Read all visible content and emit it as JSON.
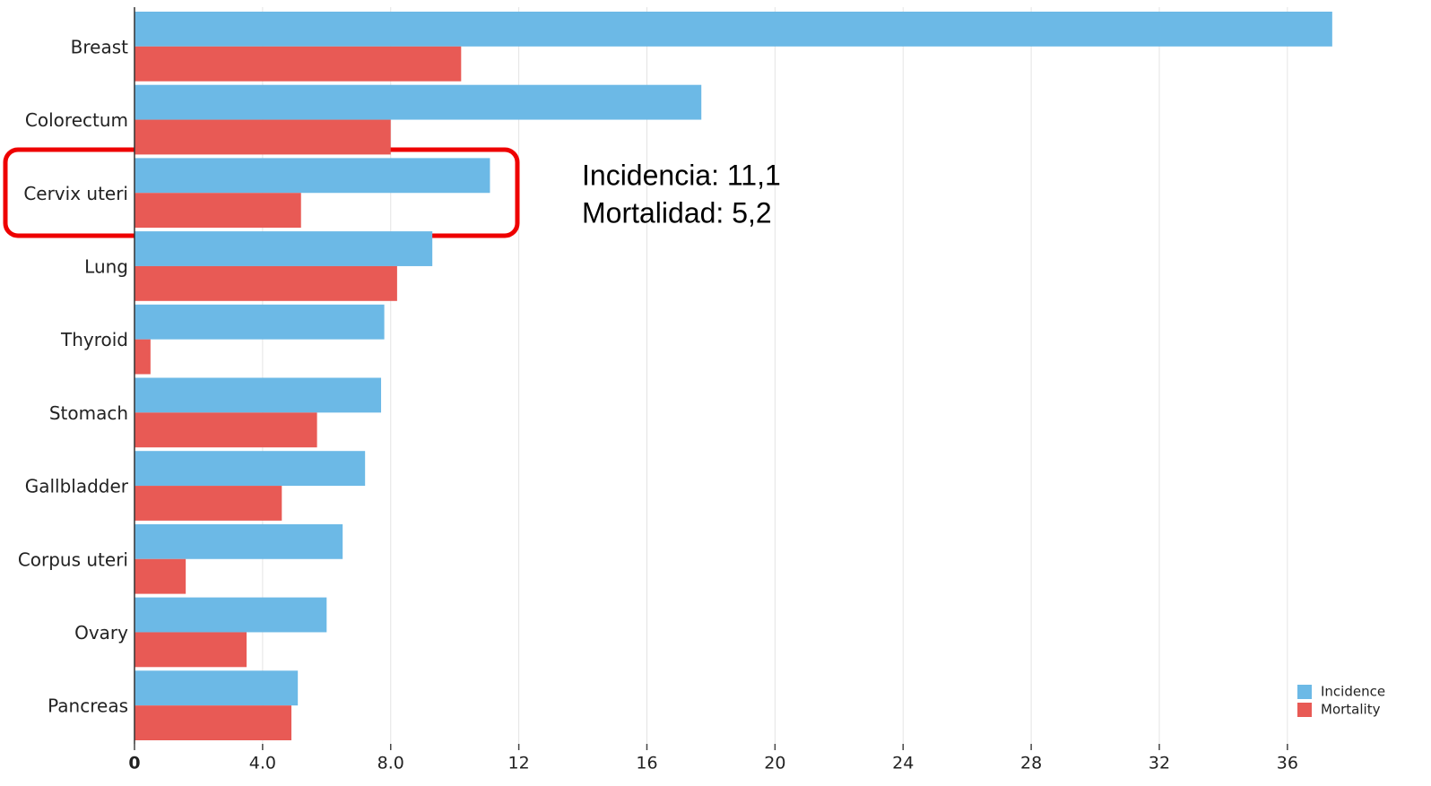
{
  "chart_data": {
    "type": "hbar",
    "categories": [
      "Breast",
      "Colorectum",
      "Cervix uteri",
      "Lung",
      "Thyroid",
      "Stomach",
      "Gallbladder",
      "Corpus uteri",
      "Ovary",
      "Pancreas"
    ],
    "series": [
      {
        "name": "Incidence",
        "color": "#6cb9e6",
        "values": [
          37.4,
          17.7,
          11.1,
          9.3,
          7.8,
          7.7,
          7.2,
          6.5,
          6.0,
          5.1
        ]
      },
      {
        "name": "Mortality",
        "color": "#e85a55",
        "values": [
          10.2,
          8.0,
          5.2,
          8.2,
          0.5,
          5.7,
          4.6,
          1.6,
          3.5,
          4.9
        ]
      }
    ],
    "xlim": [
      0,
      39.7
    ],
    "xticks": [
      0,
      {
        "value": 4,
        "label": "4.0"
      },
      {
        "value": 8,
        "label": "8.0"
      },
      12,
      16,
      20,
      24,
      28,
      32,
      36
    ],
    "grid": true,
    "legend": "lower right",
    "annotations": [
      "Incidencia: 11,1",
      "Mortalidad: 5,2"
    ]
  }
}
